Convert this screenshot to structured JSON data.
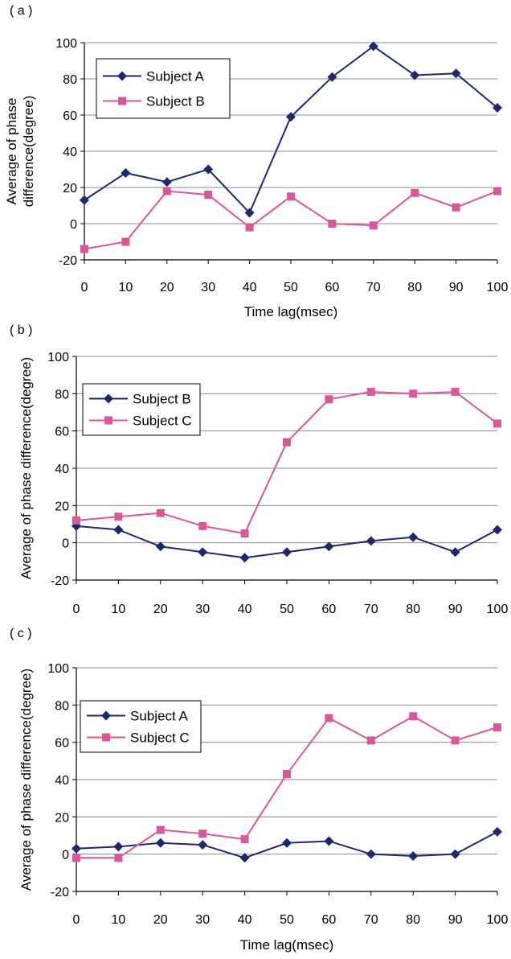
{
  "colors": {
    "series_a": "#1c2a6b",
    "series_b": "#d9579a",
    "grid": "#8c8c8c",
    "axis": "#000000"
  },
  "chart_data": [
    {
      "type": "line",
      "panel_label": "( a )",
      "x": [
        0,
        10,
        20,
        30,
        40,
        50,
        60,
        70,
        80,
        90,
        100
      ],
      "xlabel": "Time lag(msec)",
      "ylabel_lines": [
        "Average of phase",
        "difference(degree)"
      ],
      "xticks": [
        "0",
        "10",
        "20",
        "30",
        "40",
        "50",
        "60",
        "70",
        "80",
        "90",
        "100"
      ],
      "yticks": [
        "-20",
        "0",
        "20",
        "40",
        "60",
        "80",
        "100"
      ],
      "ylim": [
        -20,
        100
      ],
      "grid": true,
      "legend_position": "top-left",
      "series": [
        {
          "name": "Subject A",
          "marker": "diamond",
          "values": [
            13,
            28,
            23,
            30,
            6,
            59,
            81,
            98,
            82,
            83,
            64
          ]
        },
        {
          "name": "Subject B",
          "marker": "square",
          "values": [
            -14,
            -10,
            18,
            16,
            -2,
            15,
            0,
            -1,
            17,
            9,
            18
          ]
        }
      ]
    },
    {
      "type": "line",
      "panel_label": "( b )",
      "x": [
        0,
        10,
        20,
        30,
        40,
        50,
        60,
        70,
        80,
        90,
        100
      ],
      "xlabel": "Time lag(msec)",
      "ylabel_lines": [
        "Average of phase difference(degree)"
      ],
      "xticks": [
        "0",
        "10",
        "20",
        "30",
        "40",
        "50",
        "60",
        "70",
        "80",
        "90",
        "100"
      ],
      "yticks": [
        "-20",
        "0",
        "20",
        "40",
        "60",
        "80",
        "100"
      ],
      "ylim": [
        -20,
        100
      ],
      "grid": true,
      "legend_position": "top-left",
      "series": [
        {
          "name": "Subject B",
          "marker": "diamond",
          "values": [
            9,
            7,
            -2,
            -5,
            -8,
            -5,
            -2,
            1,
            3,
            -5,
            7
          ]
        },
        {
          "name": "Subject C",
          "marker": "square",
          "values": [
            12,
            14,
            16,
            9,
            5,
            54,
            77,
            81,
            80,
            81,
            64
          ]
        }
      ]
    },
    {
      "type": "line",
      "panel_label": "( c )",
      "x": [
        0,
        10,
        20,
        30,
        40,
        50,
        60,
        70,
        80,
        90,
        100
      ],
      "xlabel": "Time lag(msec)",
      "ylabel_lines": [
        "Average of phase difference(degree)"
      ],
      "xticks": [
        "0",
        "10",
        "20",
        "30",
        "40",
        "50",
        "60",
        "70",
        "80",
        "90",
        "100"
      ],
      "yticks": [
        "-20",
        "0",
        "20",
        "40",
        "60",
        "80",
        "100"
      ],
      "ylim": [
        -20,
        100
      ],
      "grid": true,
      "legend_position": "top-left",
      "series": [
        {
          "name": "Subject A",
          "marker": "diamond",
          "values": [
            3,
            4,
            6,
            5,
            -2,
            6,
            7,
            0,
            -1,
            0,
            12
          ]
        },
        {
          "name": "Subject C",
          "marker": "square",
          "values": [
            -2,
            -2,
            13,
            11,
            8,
            43,
            73,
            61,
            74,
            61,
            68
          ]
        }
      ]
    }
  ]
}
